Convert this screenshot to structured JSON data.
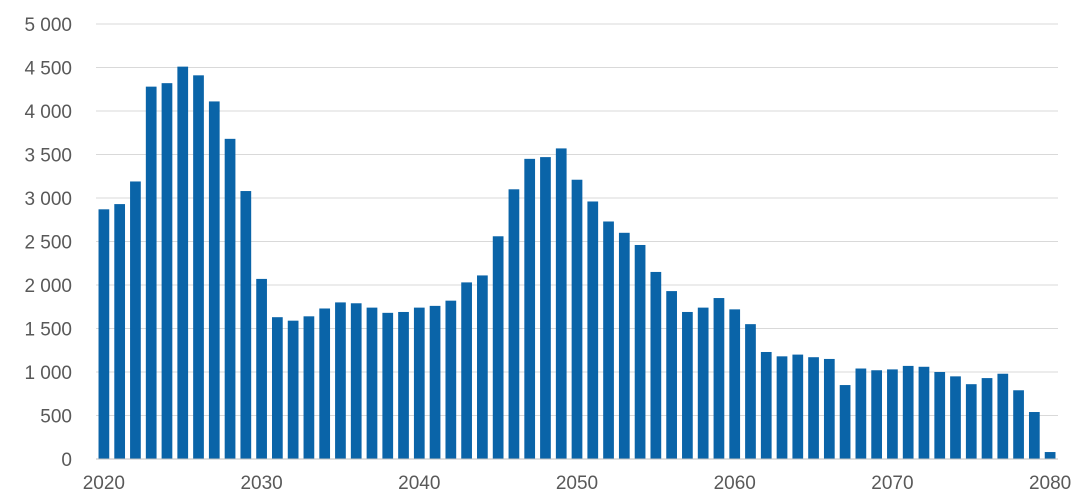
{
  "chart_data": {
    "type": "bar",
    "title": "",
    "xlabel": "",
    "ylabel": "",
    "ylim": [
      0,
      5000
    ],
    "grid": true,
    "legend": "none",
    "bar_color": "#0a64a8",
    "y_ticks": [
      0,
      500,
      1000,
      1500,
      2000,
      2500,
      3000,
      3500,
      4000,
      4500,
      5000
    ],
    "y_tick_labels": [
      "0",
      "500",
      "1 000",
      "1 500",
      "2 000",
      "2 500",
      "3 000",
      "3 500",
      "4 000",
      "4 500",
      "5 000"
    ],
    "x_tick_labels": [
      "2020",
      "2030",
      "2040",
      "2050",
      "2060",
      "2070",
      "2080"
    ],
    "x_tick_years": [
      2020,
      2030,
      2040,
      2050,
      2060,
      2070,
      2080
    ],
    "categories": [
      2020,
      2021,
      2022,
      2023,
      2024,
      2025,
      2026,
      2027,
      2028,
      2029,
      2030,
      2031,
      2032,
      2033,
      2034,
      2035,
      2036,
      2037,
      2038,
      2039,
      2040,
      2041,
      2042,
      2043,
      2044,
      2045,
      2046,
      2047,
      2048,
      2049,
      2050,
      2051,
      2052,
      2053,
      2054,
      2055,
      2056,
      2057,
      2058,
      2059,
      2060,
      2061,
      2062,
      2063,
      2064,
      2065,
      2066,
      2067,
      2068,
      2069,
      2070,
      2071,
      2072,
      2073,
      2074,
      2075,
      2076,
      2077,
      2078,
      2079,
      2080
    ],
    "values": [
      2870,
      2930,
      3190,
      4280,
      4320,
      4510,
      4410,
      4110,
      3680,
      3080,
      2070,
      1630,
      1590,
      1640,
      1730,
      1800,
      1790,
      1740,
      1680,
      1690,
      1740,
      1760,
      1820,
      2030,
      2110,
      2560,
      3100,
      3450,
      3470,
      3570,
      3210,
      2960,
      2730,
      2600,
      2460,
      2150,
      1930,
      1690,
      1740,
      1850,
      1720,
      1550,
      1230,
      1180,
      1200,
      1170,
      1150,
      850,
      1040,
      1020,
      1030,
      1070,
      1060,
      1000,
      950,
      860,
      930,
      980,
      790,
      540,
      80
    ]
  }
}
